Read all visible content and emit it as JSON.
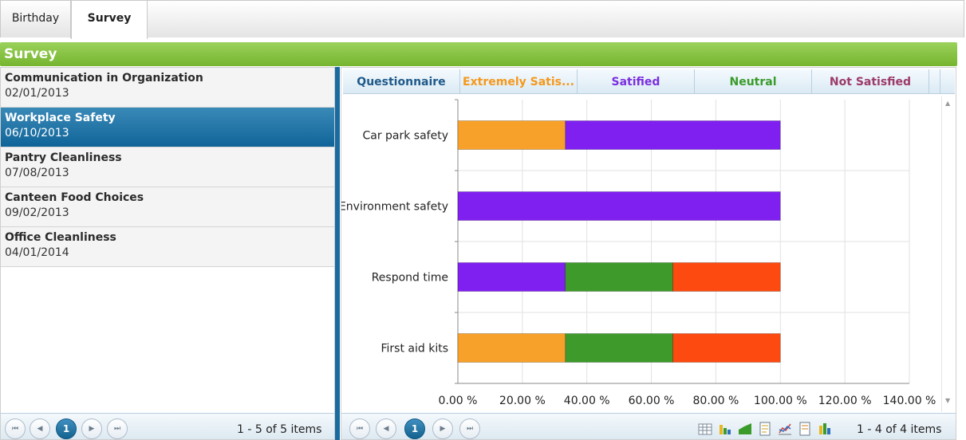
{
  "tabs": [
    {
      "label": "Birthday",
      "active": false
    },
    {
      "label": "Survey",
      "active": true
    }
  ],
  "header": {
    "title": "Survey"
  },
  "surveys": [
    {
      "name": "Communication in Organization",
      "date": "02/01/2013",
      "selected": false
    },
    {
      "name": "Workplace Safety",
      "date": "06/10/2013",
      "selected": true
    },
    {
      "name": "Pantry Cleanliness",
      "date": "07/08/2013",
      "selected": false
    },
    {
      "name": "Canteen Food Choices",
      "date": "09/02/2013",
      "selected": false
    },
    {
      "name": "Office Cleanliness",
      "date": "04/01/2014",
      "selected": false
    }
  ],
  "left_pager": {
    "current_page": "1",
    "info": "1 - 5 of 5 items"
  },
  "columns": [
    {
      "label": "Questionnaire",
      "color": "#1f5a8a"
    },
    {
      "label": "Extremely Satis...",
      "color": "#f5981c"
    },
    {
      "label": "Satified",
      "color": "#7b2fe0"
    },
    {
      "label": "Neutral",
      "color": "#3a9b2a"
    },
    {
      "label": "Not Satisfied",
      "color": "#9c3a6a"
    }
  ],
  "chart_data": {
    "type": "bar",
    "orientation": "horizontal",
    "stacked": true,
    "categories": [
      "Car park safety",
      "Environment safety",
      "Respond time",
      "First aid kits"
    ],
    "series": [
      {
        "key": "extremely_satisfied",
        "color": "#f7a12b",
        "values": [
          33.33,
          0,
          0,
          33.33
        ]
      },
      {
        "key": "satisfied",
        "color": "#7f1ff0",
        "values": [
          66.67,
          100,
          33.33,
          0
        ]
      },
      {
        "key": "neutral",
        "color": "#3d9a2b",
        "values": [
          0,
          0,
          33.33,
          33.33
        ]
      },
      {
        "key": "not_satisfied",
        "color": "#fc4a10",
        "values": [
          0,
          0,
          33.34,
          33.34
        ]
      }
    ],
    "x_ticks": [
      "0.00 %",
      "20.00 %",
      "40.00 %",
      "60.00 %",
      "80.00 %",
      "100.00 %",
      "120.00 %",
      "140.00 %"
    ],
    "xlim": [
      0,
      140
    ],
    "grid": true,
    "legend": "none"
  },
  "right_pager": {
    "current_page": "1",
    "info": "1 - 4 of 4 items"
  },
  "view_icons": [
    "grid-view-icon",
    "column-chart-icon",
    "area-chart-icon",
    "report-icon",
    "line-chart-icon",
    "document-icon",
    "bar-chart-icon"
  ]
}
